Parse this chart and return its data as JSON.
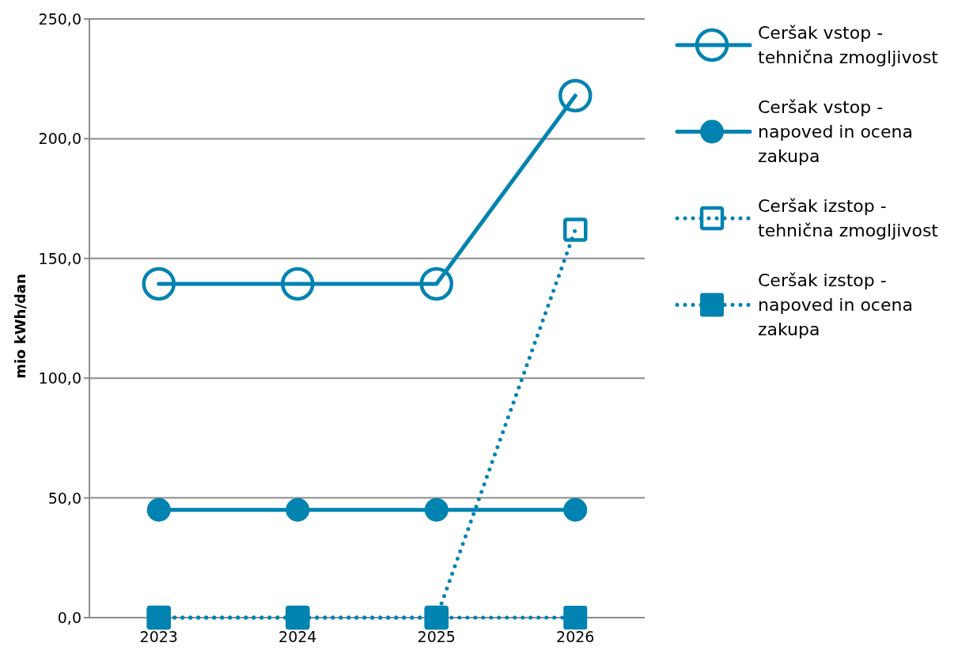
{
  "chart_data": {
    "type": "line",
    "categories": [
      "2023",
      "2024",
      "2025",
      "2026"
    ],
    "ylabel": "mio kWh/dan",
    "ylim": [
      0,
      250
    ],
    "yticks": [
      {
        "value": 0,
        "label": "0,0"
      },
      {
        "value": 50,
        "label": "50,0"
      },
      {
        "value": 100,
        "label": "100,0"
      },
      {
        "value": 150,
        "label": "150,0"
      },
      {
        "value": 200,
        "label": "200,0"
      },
      {
        "value": 250,
        "label": "250,0"
      }
    ],
    "grid": "y",
    "legend": "right",
    "series": [
      {
        "name": "Ceršak vstop - tehnična zmogljivost",
        "color": "#0083b0",
        "values": [
          139.4,
          139.4,
          139.4,
          218
        ],
        "marker": "circle",
        "line_style": "solid"
      },
      {
        "name": "Ceršak vstop - napoved in ocena zakupa",
        "color": "#0083b0",
        "values": [
          45,
          45,
          45,
          45
        ],
        "marker": "circle",
        "line_style": "solid"
      },
      {
        "name": "Ceršak izstop - tehnična zmogljivost",
        "color": "#0083b0",
        "values": [
          0,
          0,
          0,
          162
        ],
        "marker": "square",
        "line_style": "dotted"
      },
      {
        "name": "Ceršak izstop - napoved in ocena zakupa",
        "color": "#0083b0",
        "values": [
          0,
          0,
          0,
          0
        ],
        "marker": "square",
        "line_style": "dotted"
      }
    ]
  }
}
